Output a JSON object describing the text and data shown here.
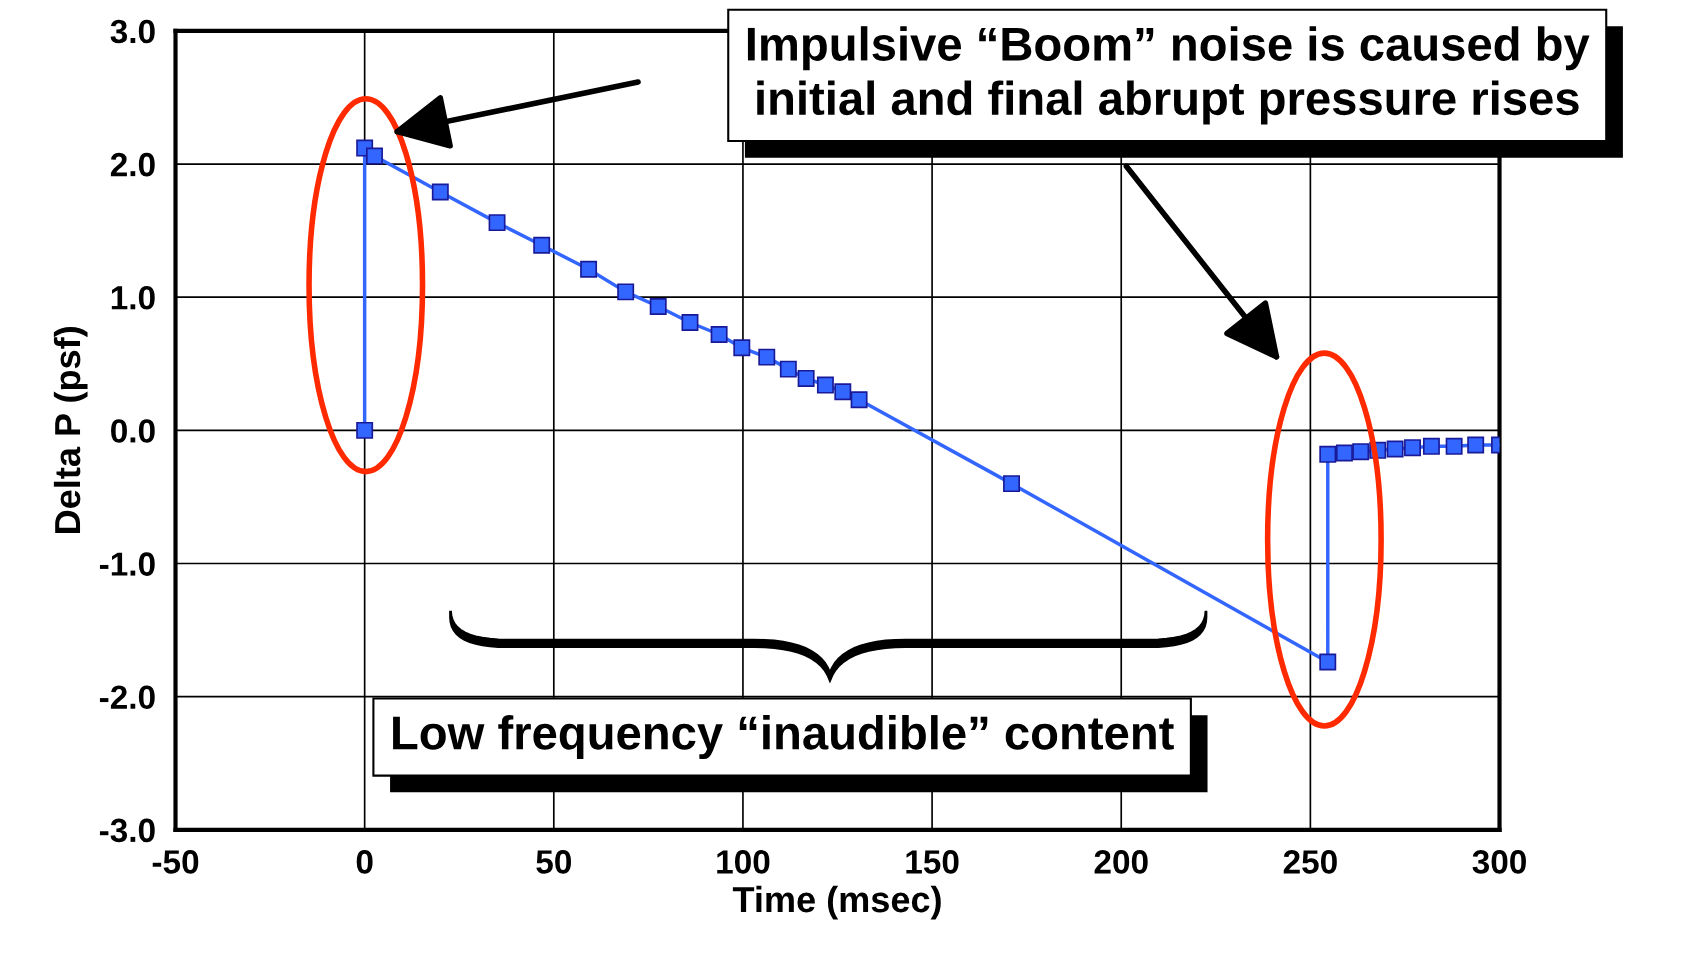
{
  "chart_data": {
    "type": "line",
    "xlabel": "Time (msec)",
    "ylabel": "Delta P (psf)",
    "x": [
      0,
      0,
      2.6,
      20,
      35,
      46.8,
      59.2,
      69,
      77.6,
      86,
      93.7,
      99.7,
      106.3,
      112,
      116.7,
      121.8,
      126.4,
      130.7,
      171,
      254.6,
      254.6,
      259,
      263.3,
      267.8,
      272.4,
      277,
      282,
      288,
      293.7,
      300
    ],
    "series": [
      {
        "color": "#3366ff",
        "values": [
          0.0,
          2.12,
          2.06,
          1.79,
          1.56,
          1.39,
          1.21,
          1.04,
          0.93,
          0.81,
          0.72,
          0.62,
          0.55,
          0.46,
          0.39,
          0.34,
          0.29,
          0.23,
          -0.4,
          -1.74,
          -0.18,
          -0.17,
          -0.16,
          -0.15,
          -0.14,
          -0.13,
          -0.12,
          -0.12,
          -0.11,
          -0.11
        ]
      }
    ],
    "xlim": [
      -50,
      300
    ],
    "ylim": [
      -3,
      3
    ],
    "xticks": [
      -50,
      0,
      50,
      100,
      150,
      200,
      250,
      300
    ],
    "yticks": [
      {
        "value": 3,
        "label": "3.0"
      },
      {
        "value": 2,
        "label": "2.0"
      },
      {
        "value": 1,
        "label": "1.0"
      },
      {
        "value": 0,
        "label": "0.0"
      },
      {
        "value": -1,
        "label": "-1.0"
      },
      {
        "value": -2,
        "label": "-2.0"
      },
      {
        "value": -3,
        "label": "-3.0"
      }
    ],
    "grid": true,
    "marker": "square",
    "line_style": "solid",
    "annotations": [
      "Impulsive “Boom” noise is caused by\ninitial and final abrupt pressure rises",
      "Low frequency “inaudible” content"
    ]
  }
}
